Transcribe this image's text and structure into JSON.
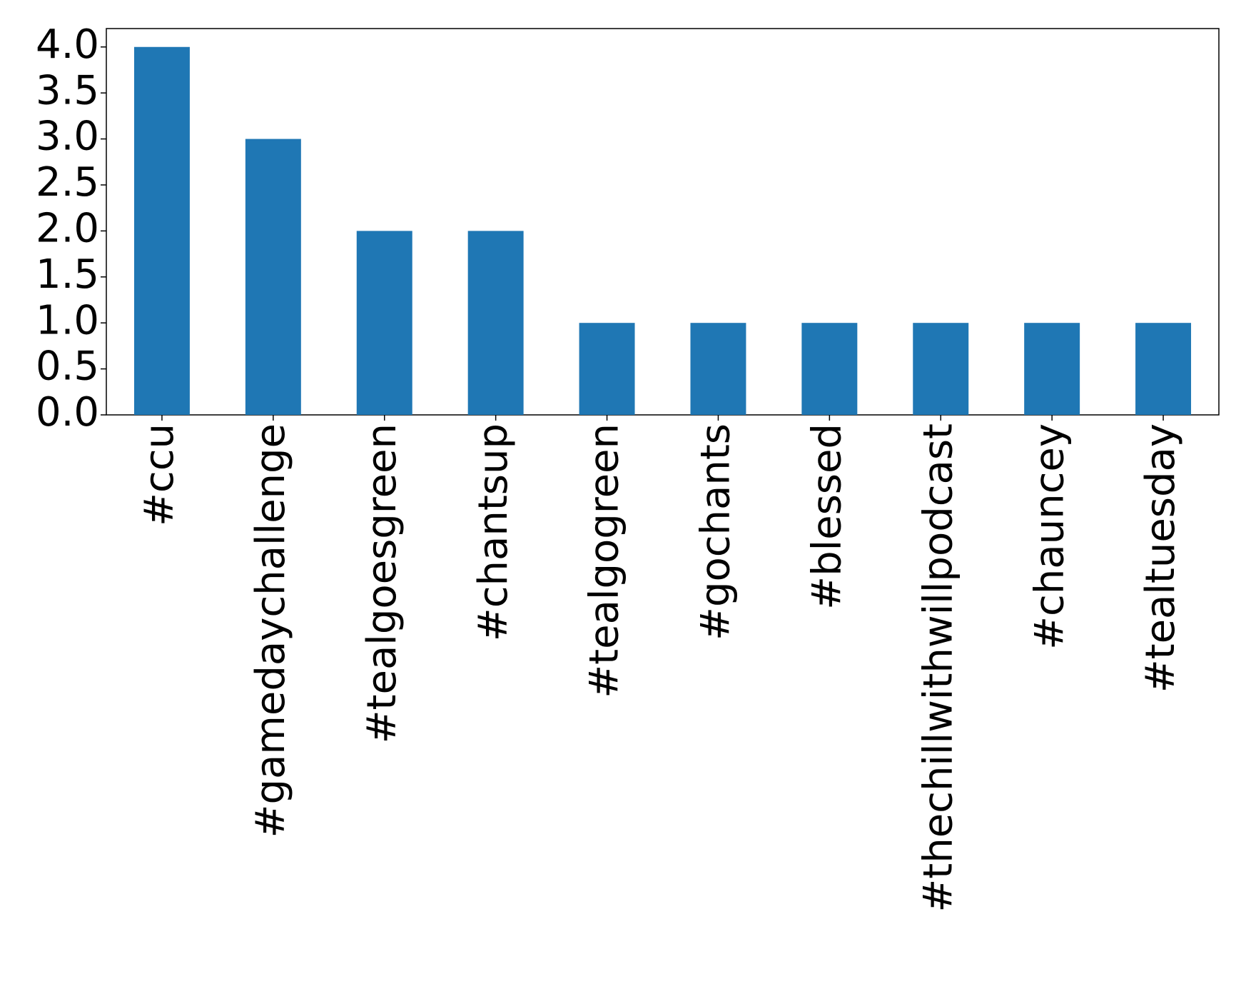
{
  "chart_data": {
    "type": "bar",
    "categories": [
      "#ccu",
      "#gamedaychallenge",
      "#tealgoesgreen",
      "#chantsup",
      "#tealgogreen",
      "#gochants",
      "#blessed",
      "#thechillwithwillpodcast",
      "#chauncey",
      "#tealtuesday"
    ],
    "values": [
      4,
      3,
      2,
      2,
      1,
      1,
      1,
      1,
      1,
      1
    ],
    "color": "#1f77b4",
    "ylim": [
      0,
      4.2
    ],
    "yticks": [
      {
        "value": 0,
        "label": "0.0"
      },
      0.5,
      {
        "value": 1,
        "label": "1.0"
      },
      1.5,
      {
        "value": 2,
        "label": "2.0"
      },
      2.5,
      {
        "value": 3,
        "label": "3.0"
      },
      3.5,
      {
        "value": 4,
        "label": "4.0"
      }
    ],
    "grid": false
  }
}
